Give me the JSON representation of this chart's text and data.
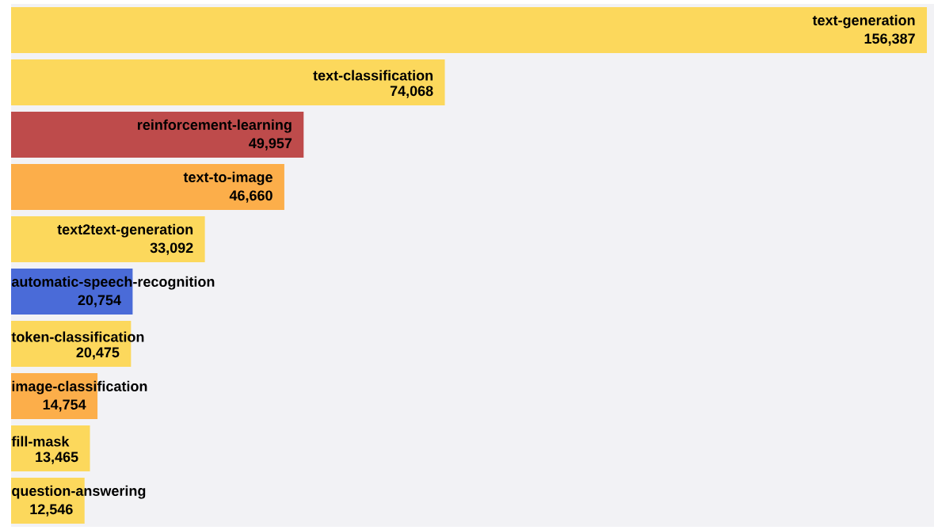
{
  "chart_data": {
    "type": "bar",
    "orientation": "horizontal",
    "categories": [
      "text-generation",
      "text-classification",
      "reinforcement-learning",
      "text-to-image",
      "text2text-generation",
      "automatic-speech-recognition",
      "token-classification",
      "image-classification",
      "fill-mask",
      "question-answering"
    ],
    "values": [
      156387,
      74068,
      49957,
      46660,
      33092,
      20754,
      20475,
      14754,
      13465,
      12546
    ],
    "value_labels": [
      "156,387",
      "74,068",
      "49,957",
      "46,660",
      "33,092",
      "20,754",
      "20,475",
      "14,754",
      "13,465",
      "12,546"
    ],
    "colors": [
      "#fcd85c",
      "#fcd85c",
      "#be4b4b",
      "#fcae4a",
      "#fcd85c",
      "#4a6bd8",
      "#fcd85c",
      "#fcae4a",
      "#fcd85c",
      "#fcd85c"
    ]
  }
}
